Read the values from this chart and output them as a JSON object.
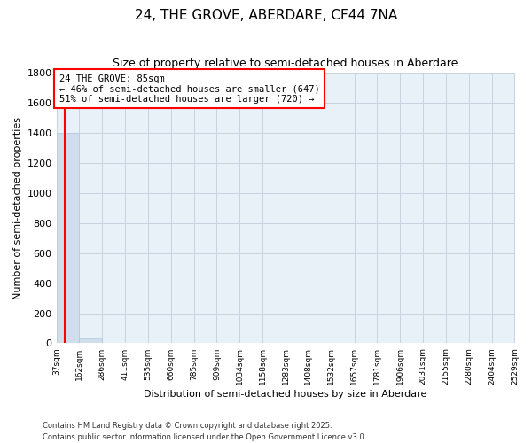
{
  "title": "24, THE GROVE, ABERDARE, CF44 7NA",
  "subtitle": "Size of property relative to semi-detached houses in Aberdare",
  "xlabel": "Distribution of semi-detached houses by size in Aberdare",
  "ylabel": "Number of semi-detached properties",
  "bar_color": "#cfdded",
  "bar_edge_color": "#b0c8dc",
  "marker_color": "red",
  "marker_value": 85,
  "annotation_line1": "24 THE GROVE: 85sqm",
  "annotation_line2": "← 46% of semi-detached houses are smaller (647)",
  "annotation_line3": "51% of semi-detached houses are larger (720) →",
  "annotation_box_color": "white",
  "annotation_box_edge_color": "red",
  "bins": [
    37,
    162,
    286,
    411,
    535,
    660,
    785,
    909,
    1034,
    1158,
    1283,
    1408,
    1532,
    1657,
    1781,
    1906,
    2031,
    2155,
    2280,
    2404,
    2529
  ],
  "counts": [
    1400,
    30,
    2,
    1,
    1,
    0,
    0,
    0,
    0,
    0,
    0,
    0,
    0,
    0,
    0,
    0,
    0,
    0,
    0,
    0
  ],
  "ylim": [
    0,
    1800
  ],
  "yticks": [
    0,
    200,
    400,
    600,
    800,
    1000,
    1200,
    1400,
    1600,
    1800
  ],
  "grid_color": "#c8d4e0",
  "background_color": "#e8f0f8",
  "footer_text": "Contains HM Land Registry data © Crown copyright and database right 2025.\nContains public sector information licensed under the Open Government Licence v3.0.",
  "figsize": [
    6.0,
    5.0
  ],
  "dpi": 100
}
